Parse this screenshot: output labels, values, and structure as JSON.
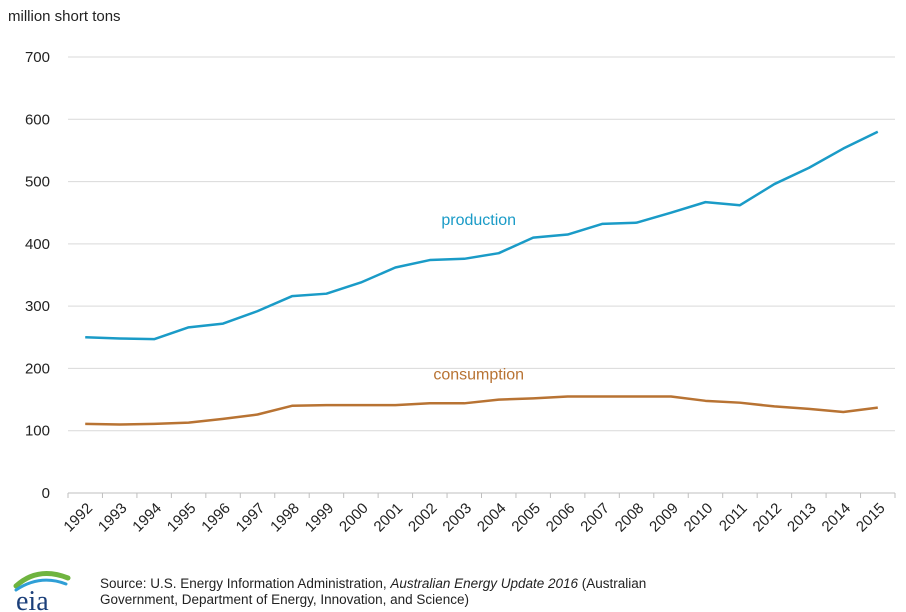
{
  "chart_data": {
    "type": "line",
    "ylabel": "million short tons",
    "ylim": [
      0,
      700
    ],
    "yticks": [
      0,
      100,
      200,
      300,
      400,
      500,
      600,
      700
    ],
    "grid": true,
    "categories": [
      "1992",
      "1993",
      "1994",
      "1995",
      "1996",
      "1997",
      "1998",
      "1999",
      "2000",
      "2001",
      "2002",
      "2003",
      "2004",
      "2005",
      "2006",
      "2007",
      "2008",
      "2009",
      "2010",
      "2011",
      "2012",
      "2013",
      "2014",
      "2015"
    ],
    "series": [
      {
        "name": "production",
        "color": "#1a9bc7",
        "values": [
          250,
          248,
          247,
          266,
          272,
          292,
          316,
          320,
          338,
          362,
          374,
          376,
          385,
          410,
          415,
          432,
          434,
          450,
          467,
          462,
          496,
          522,
          553,
          580
        ]
      },
      {
        "name": "consumption",
        "color": "#b87333",
        "values": [
          111,
          110,
          111,
          113,
          119,
          126,
          140,
          141,
          141,
          141,
          144,
          144,
          150,
          152,
          155,
          155,
          155,
          155,
          148,
          145,
          139,
          135,
          130,
          137
        ]
      }
    ]
  },
  "footer": {
    "logo_text": "eia",
    "source_prefix": "Source: U.S. Energy Information Administration, ",
    "source_title": "Australian Energy Update 2016",
    "source_suffix": " (Australian",
    "source_line2": "Government, Department of Energy, Innovation, and Science)"
  },
  "colors": {
    "production": "#1a9bc7",
    "consumption": "#b87333",
    "grid": "#d9d9d9",
    "logo_arc": "#6fb43f"
  }
}
